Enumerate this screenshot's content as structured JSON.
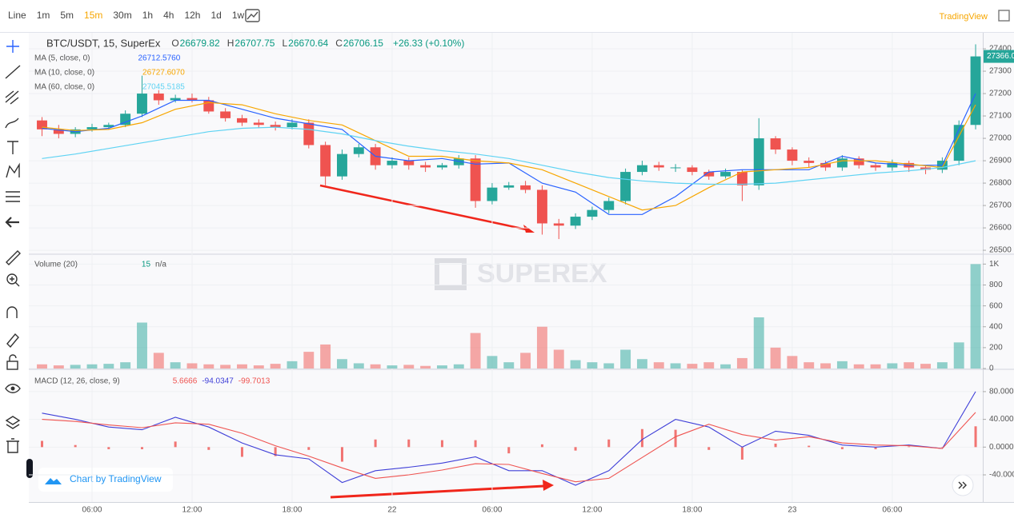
{
  "toolbar": {
    "intervals": [
      "Line",
      "1m",
      "5m",
      "15m",
      "30m",
      "1h",
      "4h",
      "12h",
      "1d",
      "1w"
    ],
    "selected": 3,
    "brand": "TradingView"
  },
  "watermark": "SUPEREX",
  "footer": "Chart by TradingView",
  "chart_data": [
    {
      "type": "candlestick",
      "title": "BTC/USDT, 15, SuperEx",
      "readout": [
        {
          "label": "O",
          "value": "26679.82"
        },
        {
          "label": "H",
          "value": "26707.75"
        },
        {
          "label": "L",
          "value": "26670.64"
        },
        {
          "label": "C",
          "value": "26706.15"
        }
      ],
      "change": "+26.33 (+0.10%)",
      "last_price_label": "27366.0",
      "up_color": "#26a69a",
      "down_color": "#ef5350",
      "xlim": [
        2.4,
        59.43
      ],
      "ylim": [
        26486,
        27468
      ],
      "yticks": [
        26500,
        26600,
        26700,
        26800,
        26900,
        27000,
        27100,
        27200,
        27300,
        27400
      ],
      "x": [
        3,
        4,
        5,
        6,
        7,
        8,
        9,
        10,
        11,
        12,
        13,
        14,
        15,
        16,
        17,
        18,
        19,
        20,
        21,
        22,
        23,
        24,
        25,
        26,
        27,
        28,
        29,
        30,
        31,
        32,
        33,
        34,
        35,
        36,
        37,
        38,
        39,
        40,
        41,
        42,
        43,
        44,
        45,
        46,
        47,
        48,
        49,
        50,
        51,
        52,
        53,
        54,
        55,
        56,
        57,
        58,
        59
      ],
      "open": [
        27080,
        27040,
        27020,
        27040,
        27050,
        27060,
        27110,
        27200,
        27170,
        27180,
        27170,
        27120,
        27090,
        27070,
        27060,
        27050,
        27070,
        26970,
        26830,
        26930,
        26960,
        26880,
        26900,
        26880,
        26870,
        26880,
        26910,
        26720,
        26780,
        26790,
        26770,
        26620,
        26610,
        26650,
        26680,
        26720,
        26850,
        26880,
        26870,
        26870,
        26850,
        26830,
        26850,
        26790,
        27000,
        26950,
        26900,
        26890,
        26870,
        26910,
        26880,
        26870,
        26890,
        26870,
        26860,
        26900,
        27060
      ],
      "high": [
        27095,
        27060,
        27050,
        27065,
        27070,
        27125,
        27280,
        27215,
        27195,
        27200,
        27185,
        27135,
        27105,
        27085,
        27075,
        27085,
        27085,
        26985,
        26950,
        26975,
        26975,
        26915,
        26915,
        26895,
        26890,
        26925,
        26925,
        26800,
        26805,
        26810,
        26790,
        26640,
        26665,
        26695,
        26735,
        26865,
        26900,
        26895,
        26885,
        26880,
        26860,
        26865,
        26860,
        27090,
        27010,
        26960,
        26915,
        26900,
        26925,
        26920,
        26890,
        26905,
        26900,
        26880,
        26915,
        27080,
        27420
      ],
      "low": [
        27010,
        27000,
        27005,
        27030,
        27040,
        27050,
        27095,
        27150,
        27160,
        27160,
        27110,
        27075,
        27055,
        27045,
        27035,
        27040,
        26955,
        26790,
        26815,
        26915,
        26860,
        26865,
        26860,
        26850,
        26860,
        26865,
        26690,
        26705,
        26770,
        26755,
        26570,
        26550,
        26595,
        26635,
        26665,
        26705,
        26835,
        26855,
        26850,
        26835,
        26815,
        26820,
        26720,
        26770,
        26930,
        26880,
        26870,
        26855,
        26855,
        26865,
        26855,
        26855,
        26850,
        26840,
        26845,
        26880,
        27040
      ],
      "close": [
        27040,
        27020,
        27040,
        27050,
        27060,
        27110,
        27200,
        27170,
        27180,
        27170,
        27120,
        27090,
        27070,
        27060,
        27050,
        27070,
        26970,
        26830,
        26930,
        26960,
        26880,
        26900,
        26880,
        26870,
        26880,
        26910,
        26720,
        26780,
        26790,
        26770,
        26620,
        26610,
        26650,
        26680,
        26720,
        26850,
        26880,
        26870,
        26870,
        26850,
        26830,
        26850,
        26790,
        27000,
        26950,
        26900,
        26890,
        26870,
        26910,
        26880,
        26870,
        26890,
        26870,
        26860,
        26900,
        27060,
        27366
      ],
      "series": [
        {
          "name": "MA (5, close, 0)",
          "legend_value": "26712.5760",
          "color": "#2962ff",
          "x": [
            3,
            5,
            7,
            9,
            11,
            13,
            15,
            17,
            19,
            21,
            23,
            25,
            27,
            29,
            31,
            33,
            35,
            37,
            39,
            41,
            43,
            45,
            47,
            49,
            51,
            53,
            55,
            57,
            59
          ],
          "values": [
            27045,
            27030,
            27045,
            27100,
            27170,
            27170,
            27130,
            27090,
            27065,
            27040,
            26920,
            26900,
            26910,
            26885,
            26890,
            26800,
            26760,
            26660,
            26660,
            26740,
            26850,
            26860,
            26860,
            26860,
            26920,
            26890,
            26880,
            26880,
            27200
          ]
        },
        {
          "name": "MA (10, close, 0)",
          "legend_value": "26727.6070",
          "color": "#f7a600",
          "x": [
            3,
            5,
            7,
            9,
            11,
            13,
            15,
            17,
            19,
            21,
            23,
            25,
            27,
            29,
            31,
            33,
            35,
            37,
            39,
            41,
            43,
            45,
            47,
            49,
            51,
            53,
            55,
            57,
            59
          ],
          "values": [
            27050,
            27035,
            27040,
            27070,
            27130,
            27160,
            27150,
            27110,
            27080,
            27060,
            26990,
            26920,
            26920,
            26900,
            26890,
            26860,
            26800,
            26740,
            26680,
            26700,
            26780,
            26850,
            26860,
            26870,
            26900,
            26900,
            26885,
            26870,
            27150
          ]
        },
        {
          "name": "MA (60, close, 0)",
          "legend_value": "27045.5185",
          "color": "#5fd3f3",
          "x": [
            3,
            5,
            7,
            9,
            11,
            13,
            15,
            17,
            19,
            21,
            23,
            25,
            27,
            29,
            31,
            33,
            35,
            37,
            39,
            41,
            43,
            45,
            47,
            49,
            51,
            53,
            55,
            57,
            59
          ],
          "values": [
            26910,
            26930,
            26955,
            26980,
            27005,
            27030,
            27045,
            27050,
            27040,
            27020,
            26990,
            26965,
            26945,
            26930,
            26910,
            26880,
            26850,
            26825,
            26810,
            26800,
            26795,
            26795,
            26800,
            26815,
            26830,
            26845,
            26855,
            26870,
            26900
          ]
        }
      ]
    },
    {
      "type": "bar",
      "title": "Volume (20)",
      "readout": [
        "15",
        "n/a"
      ],
      "xlim": [
        2.4,
        59.43
      ],
      "ylim": [
        0,
        1087
      ],
      "yticks": [
        0,
        200,
        400,
        600,
        800,
        {
          "value": 1000,
          "label": "1K"
        }
      ],
      "x": [
        3,
        4,
        5,
        6,
        7,
        8,
        9,
        10,
        11,
        12,
        13,
        14,
        15,
        16,
        17,
        18,
        19,
        20,
        21,
        22,
        23,
        24,
        25,
        26,
        27,
        28,
        29,
        30,
        31,
        32,
        33,
        34,
        35,
        36,
        37,
        38,
        39,
        40,
        41,
        42,
        43,
        44,
        45,
        46,
        47,
        48,
        49,
        50,
        51,
        52,
        53,
        54,
        55,
        56,
        57,
        58,
        59
      ],
      "values": [
        40,
        30,
        35,
        40,
        45,
        60,
        440,
        150,
        60,
        50,
        40,
        35,
        40,
        30,
        45,
        70,
        160,
        230,
        90,
        50,
        40,
        30,
        35,
        25,
        30,
        40,
        340,
        120,
        60,
        150,
        400,
        180,
        80,
        60,
        50,
        180,
        90,
        60,
        50,
        45,
        60,
        40,
        100,
        490,
        200,
        120,
        60,
        50,
        70,
        40,
        40,
        50,
        60,
        45,
        60,
        250,
        1000
      ]
    },
    {
      "type": "macd",
      "title": "MACD (12, 26, close, 9)",
      "xlim": [
        2.4,
        59.43
      ],
      "ylim": [
        -78,
        111
      ],
      "yticks": [
        {
          "value": 80,
          "label": "80.0000"
        },
        {
          "value": 40,
          "label": "40.0000"
        },
        {
          "value": 0,
          "label": "0.0000"
        },
        {
          "value": -40,
          "label": "-40.0000"
        }
      ],
      "xticks": [
        {
          "value": 6,
          "label": "06:00"
        },
        {
          "value": 12,
          "label": "12:00"
        },
        {
          "value": 18,
          "label": "18:00"
        },
        {
          "value": 24,
          "label": "22"
        },
        {
          "value": 30,
          "label": "06:00"
        },
        {
          "value": 36,
          "label": "12:00"
        },
        {
          "value": 42,
          "label": "18:00"
        },
        {
          "value": 48,
          "label": "23"
        },
        {
          "value": 54,
          "label": "06:00"
        }
      ],
      "x": [
        3,
        5,
        7,
        9,
        11,
        13,
        15,
        17,
        19,
        21,
        23,
        25,
        27,
        29,
        31,
        33,
        35,
        37,
        39,
        41,
        43,
        45,
        47,
        49,
        51,
        53,
        55,
        57,
        59
      ],
      "histogram": {
        "readout": "5.6666",
        "color": "#ef5350",
        "values": [
          9,
          3,
          -3,
          -3,
          8,
          -4,
          -14,
          -13,
          -4,
          -21,
          11,
          11,
          10,
          10,
          -9,
          4,
          -5,
          11,
          26,
          25,
          -4,
          -18,
          5,
          2,
          -3,
          -3,
          1,
          0,
          30
        ]
      },
      "series": [
        {
          "readout": "-94.0347",
          "color": "#3f3fd8",
          "values": [
            49,
            40,
            29,
            25,
            43,
            29,
            6,
            -11,
            -17,
            -51,
            -34,
            -29,
            -23,
            -14,
            -34,
            -34,
            -55,
            -34,
            11,
            40,
            29,
            0,
            23,
            17,
            3,
            0,
            3,
            -2,
            80
          ]
        },
        {
          "readout": "-99.7013",
          "color": "#ef5350",
          "values": [
            40,
            37,
            32,
            28,
            35,
            33,
            20,
            2,
            -13,
            -30,
            -45,
            -40,
            -33,
            -24,
            -25,
            -38,
            -50,
            -45,
            -15,
            15,
            33,
            18,
            10,
            15,
            6,
            3,
            2,
            -2,
            50
          ]
        }
      ]
    }
  ]
}
